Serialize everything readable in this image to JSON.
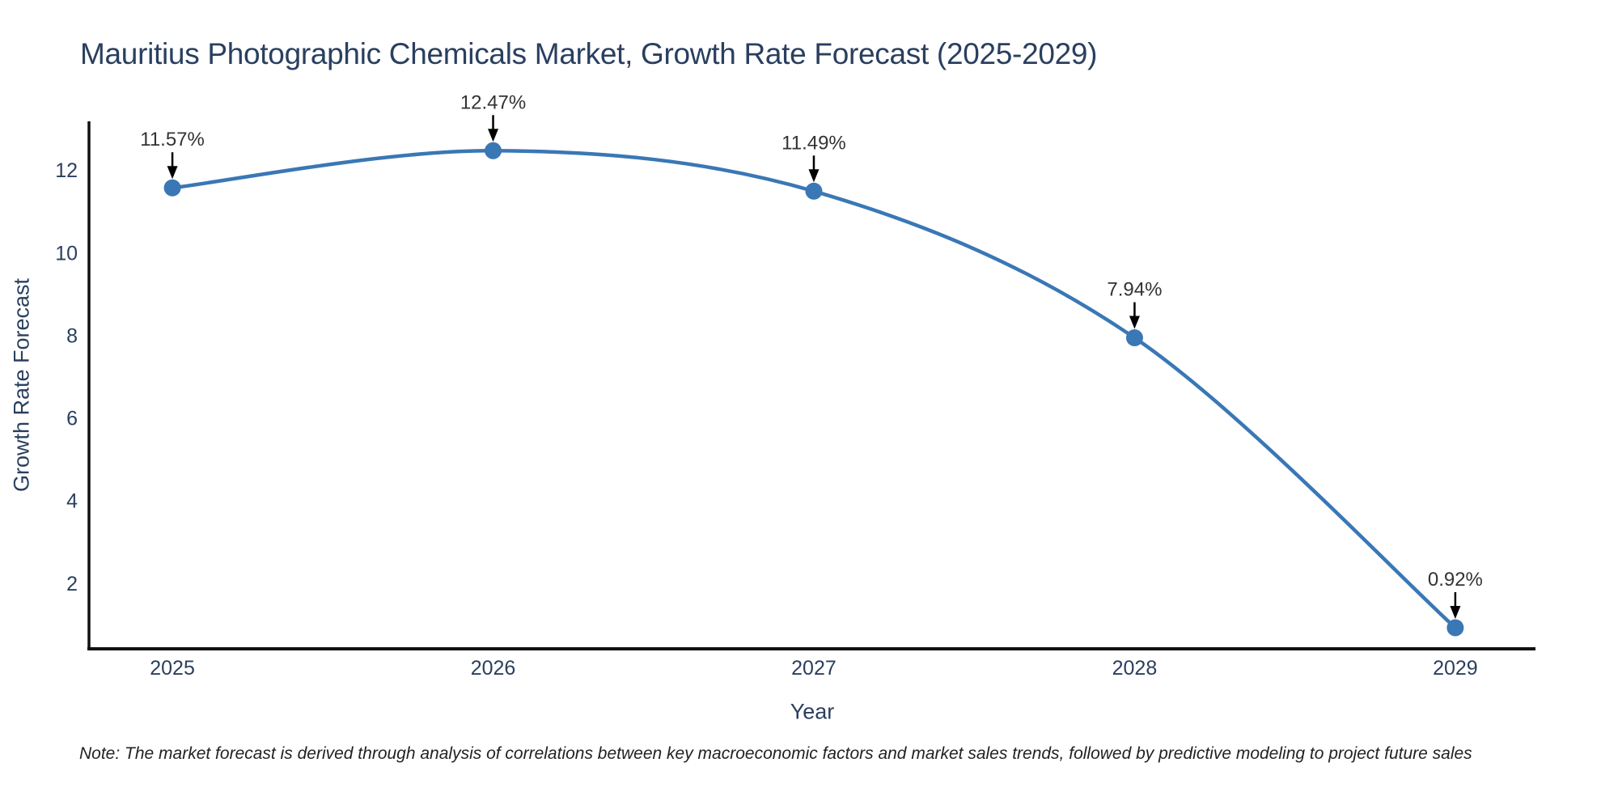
{
  "figure": {
    "note": "Note: The market forecast is derived through analysis of correlations between key macroeconomic factors and market sales trends, followed by predictive modeling to project future sales"
  },
  "chart_data": {
    "type": "line",
    "title": "Mauritius Photographic Chemicals Market, Growth Rate Forecast (2025-2029)",
    "xlabel": "Year",
    "ylabel": "Growth Rate Forecast",
    "x": [
      2025,
      2026,
      2027,
      2028,
      2029
    ],
    "series": [
      {
        "name": "Growth Rate Forecast",
        "values": [
          11.57,
          12.47,
          11.49,
          7.94,
          0.92
        ]
      }
    ],
    "point_labels": [
      "11.57%",
      "12.47%",
      "11.49%",
      "7.94%",
      "0.92%"
    ],
    "x_ticks": [
      "2025",
      "2026",
      "2027",
      "2028",
      "2029"
    ],
    "y_ticks": [
      2,
      4,
      6,
      8,
      10,
      12
    ],
    "xlim": [
      2024.74,
      2029.25
    ],
    "ylim": [
      0.41,
      13.18
    ],
    "grid": false,
    "legend": "none",
    "line_shape": "spline",
    "colors": {
      "line": "#3a77b5",
      "marker": "#3a77b5",
      "axis": "#111111",
      "title_text": "#2a3f5f",
      "tick_text": "#2a3f5f",
      "annotation_text": "#333333",
      "arrow": "#000000",
      "background": "#ffffff"
    }
  }
}
